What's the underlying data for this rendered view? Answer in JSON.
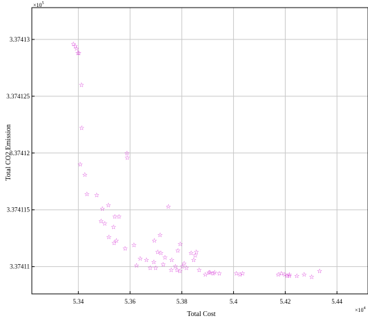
{
  "chart_data": {
    "type": "scatter",
    "xlabel": "Total Cost",
    "ylabel": "Total CO2 Emission",
    "x_exponent_label": "×10",
    "y_exponent_label": "×10",
    "x_exponent_power": "4",
    "y_exponent_power": "5",
    "xlim": [
      5.322,
      5.452
    ],
    "ylim": [
      3.3741076,
      3.3741328
    ],
    "xticks": [
      5.34,
      5.36,
      5.38,
      5.4,
      5.42,
      5.44
    ],
    "xtick_labels": [
      "5.34",
      "5.36",
      "5.38",
      "5.4",
      "5.42",
      "5.44"
    ],
    "yticks": [
      3.37411,
      3.374115,
      3.37412,
      3.374125,
      3.37413
    ],
    "ytick_labels": [
      "3.37411",
      "3.374115",
      "3.37412",
      "3.374125",
      "3.37413"
    ],
    "grid": true,
    "marker": "☆",
    "colors": {
      "marker": "#cc00cc",
      "grid": "#c8c8c8",
      "axis": "#000000"
    },
    "series": [
      {
        "x": [
          5.3381,
          5.3388,
          5.3393,
          5.3398,
          5.3402,
          5.3412,
          5.3407,
          5.3413,
          5.3425,
          5.3433,
          5.3471,
          5.3488,
          5.3502,
          5.3518,
          5.3541,
          5.3557,
          5.3589,
          5.3588,
          5.3493,
          5.3516,
          5.3538,
          5.3547,
          5.3536,
          5.3581,
          5.3615,
          5.3625,
          5.3639,
          5.3663,
          5.3678,
          5.3692,
          5.3694,
          5.3707,
          5.3699,
          5.3716,
          5.3719,
          5.3728,
          5.3735,
          5.3748,
          5.3759,
          5.3761,
          5.3775,
          5.3782,
          5.3785,
          5.3793,
          5.3794,
          5.3802,
          5.3809,
          5.3818,
          5.3836,
          5.3846,
          5.3852,
          5.3856,
          5.3867,
          5.3891,
          5.3905,
          5.3909,
          5.3921,
          5.3927,
          5.3945,
          5.4011,
          5.4025,
          5.4035,
          5.4173,
          5.4185,
          5.4198,
          5.4207,
          5.4216,
          5.4245,
          5.4273,
          5.4302,
          5.4333,
          5.4216
        ],
        "y": [
          3.3741296,
          3.3741294,
          3.3741292,
          3.3741288,
          3.3741288,
          3.374126,
          3.374119,
          3.3741222,
          3.3741181,
          3.3741164,
          3.3741163,
          3.374114,
          3.3741138,
          3.3741126,
          3.3741144,
          3.3741144,
          3.3741196,
          3.37412,
          3.3741151,
          3.3741154,
          3.3741121,
          3.3741123,
          3.3741135,
          3.3741116,
          3.3741119,
          3.3741101,
          3.3741107,
          3.3741106,
          3.3741099,
          3.3741104,
          3.3741123,
          3.3741113,
          3.3741099,
          3.3741128,
          3.3741112,
          3.3741102,
          3.3741108,
          3.3741153,
          3.3741097,
          3.3741106,
          3.37411,
          3.3741097,
          3.3741114,
          3.3741096,
          3.374112,
          3.37411,
          3.3741103,
          3.3741099,
          3.3741112,
          3.3741106,
          3.374111,
          3.3741113,
          3.3741097,
          3.3741093,
          3.3741095,
          3.3741095,
          3.3741094,
          3.3741095,
          3.3741094,
          3.3741094,
          3.3741093,
          3.3741094,
          3.3741093,
          3.3741094,
          3.3741093,
          3.3741092,
          3.3741093,
          3.3741092,
          3.3741093,
          3.3741091,
          3.3741096,
          3.3741092
        ]
      }
    ]
  }
}
